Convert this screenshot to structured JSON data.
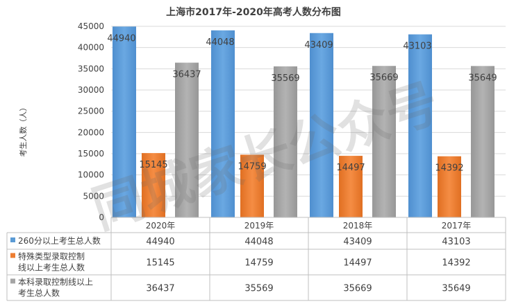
{
  "chart_data": {
    "type": "bar",
    "title": "上海市2017年-2020年高考人数分布图",
    "ylabel": "考生人数（人）",
    "ylim": [
      0,
      45000
    ],
    "yticks": [
      0,
      5000,
      10000,
      15000,
      20000,
      25000,
      30000,
      35000,
      40000,
      45000
    ],
    "grid": true,
    "legend": "data-table",
    "categories": [
      "2020年",
      "2019年",
      "2018年",
      "2017年"
    ],
    "series": [
      {
        "name": "260分以上考生总人数",
        "name_lines": [
          "260分以上考生总人数"
        ],
        "color": "#5b9bd5",
        "values": [
          44940,
          44048,
          43409,
          43103
        ]
      },
      {
        "name": "特殊类型录取控制线以上考生总人数",
        "name_lines": [
          "特殊类型录取控制",
          "线以上考生总人数"
        ],
        "color": "#ed7d31",
        "values": [
          15145,
          14759,
          14497,
          14392
        ]
      },
      {
        "name": "本科录取控制线以上考生总人数",
        "name_lines": [
          "本科录取控制线以上",
          "考生总人数"
        ],
        "color": "#a5a5a5",
        "values": [
          36437,
          35569,
          35669,
          35649
        ]
      }
    ]
  },
  "watermark": "同城家长公众号"
}
